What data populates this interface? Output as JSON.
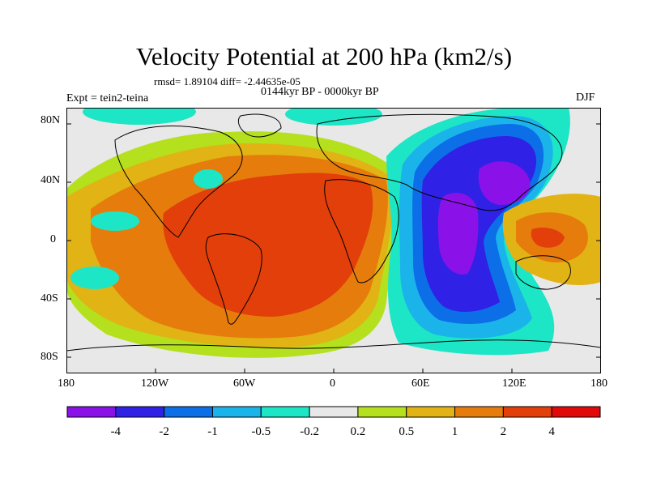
{
  "title": "Velocity Potential at 200 hPa (km2/s)",
  "subtitle_stats": "rmsd= 1.89104 diff= -2.44635e-05",
  "subtitle_period": "0144kyr BP - 0000kyr BP",
  "left_label": "Expt = tein2-teina",
  "right_label": "DJF",
  "lat_labels": [
    "80N",
    "40N",
    "0",
    "40S",
    "80S"
  ],
  "lon_labels": [
    "180",
    "120W",
    "60W",
    "0",
    "60E",
    "120E",
    "180"
  ],
  "colorbar": {
    "colors": [
      "#8a12e8",
      "#2f22e6",
      "#0c6fe8",
      "#1bb4ea",
      "#1de6c6",
      "#e8e8e8",
      "#b4e01e",
      "#e2b314",
      "#e57c0c",
      "#e23f0a",
      "#e2090a"
    ],
    "labels": [
      "-4",
      "-2",
      "-1",
      "-0.5",
      "-0.2",
      "0.2",
      "0.5",
      "1",
      "2",
      "4"
    ]
  }
}
